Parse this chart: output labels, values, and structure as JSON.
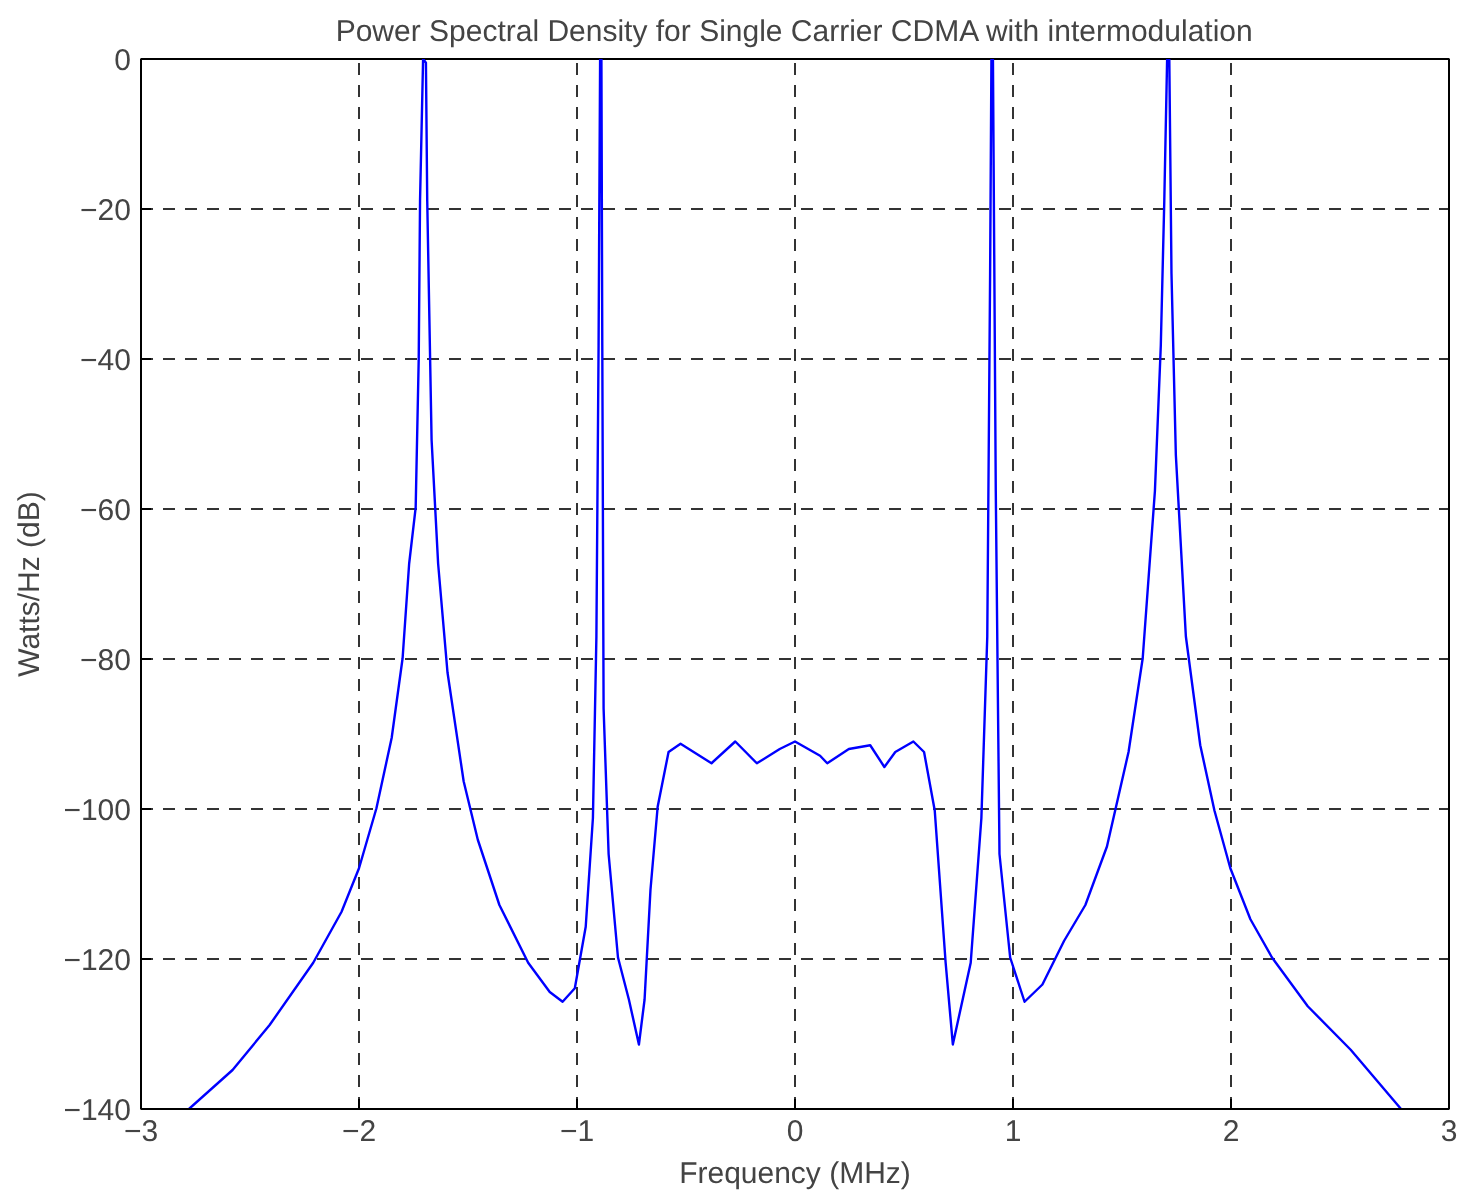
{
  "chart_data": {
    "type": "line",
    "title": "Power Spectral Density for Single Carrier CDMA with intermodulation",
    "xlabel": "Frequency (MHz)",
    "ylabel": "Watts/Hz (dB)",
    "xlim": [
      -3,
      3
    ],
    "ylim": [
      -140,
      0
    ],
    "xticks": [
      -3,
      -2,
      -1,
      0,
      1,
      2,
      3
    ],
    "yticks": [
      -140,
      -120,
      -100,
      -80,
      -60,
      -40,
      -20,
      0
    ],
    "grid": true,
    "line_style": "solid",
    "series": [
      {
        "color": "#0000ff",
        "x": [
          -2.78,
          -2.58,
          -2.41,
          -2.21,
          -2.08,
          -2.0,
          -1.92,
          -1.85,
          -1.8,
          -1.77,
          -1.74,
          -1.726,
          -1.72,
          -1.706,
          -1.693,
          -1.687,
          -1.667,
          -1.637,
          -1.594,
          -1.52,
          -1.455,
          -1.356,
          -1.224,
          -1.125,
          -1.066,
          -1.01,
          -0.96,
          -0.927,
          -0.911,
          -0.901,
          -0.894,
          -0.888,
          -0.884,
          -0.878,
          -0.855,
          -0.812,
          -0.762,
          -0.716,
          -0.69,
          -0.663,
          -0.63,
          -0.58,
          -0.525,
          -0.465,
          -0.383,
          -0.274,
          -0.175,
          -0.07,
          0,
          0.115,
          0.148,
          0.247,
          0.345,
          0.41,
          0.46,
          0.543,
          0.592,
          0.641,
          0.691,
          0.724,
          0.806,
          0.855,
          0.882,
          0.895,
          0.901,
          0.908,
          0.921,
          0.938,
          0.987,
          1.053,
          1.135,
          1.234,
          1.332,
          1.431,
          1.53,
          1.595,
          1.651,
          1.678,
          1.694,
          1.707,
          1.717,
          1.727,
          1.747,
          1.793,
          1.859,
          1.924,
          1.997,
          2.089,
          2.188,
          2.352,
          2.549,
          2.78
        ],
        "values": [
          -140,
          -134.8,
          -128.8,
          -120.5,
          -113.7,
          -107.9,
          -99.9,
          -90.5,
          -79.9,
          -67.3,
          -59.8,
          -39.9,
          -18.9,
          0,
          -0.5,
          -18.9,
          -50.8,
          -67.3,
          -81.8,
          -96.3,
          -104.1,
          -112.8,
          -120.5,
          -124.4,
          -125.7,
          -123.9,
          -115.7,
          -101.2,
          -77,
          -38.2,
          0,
          0,
          -38.2,
          -86.6,
          -106,
          -119.8,
          -125.4,
          -131.4,
          -125.4,
          -110.8,
          -99.7,
          -92.4,
          -91.3,
          -92.4,
          -93.9,
          -91,
          -93.9,
          -92,
          -91,
          -92.9,
          -93.9,
          -92,
          -91.5,
          -94.4,
          -92.4,
          -91,
          -92.4,
          -100.2,
          -120.5,
          -131.4,
          -120.5,
          -101.2,
          -77,
          -28.6,
          0,
          0,
          -57.6,
          -106,
          -119.8,
          -125.7,
          -123.4,
          -117.6,
          -112.8,
          -105,
          -92.4,
          -79.9,
          -57.6,
          -38.2,
          -18.9,
          0,
          0,
          -28.6,
          -52.8,
          -77,
          -91.5,
          -100.2,
          -107.9,
          -114.7,
          -119.8,
          -126.3,
          -132.1,
          -140
        ]
      }
    ]
  }
}
